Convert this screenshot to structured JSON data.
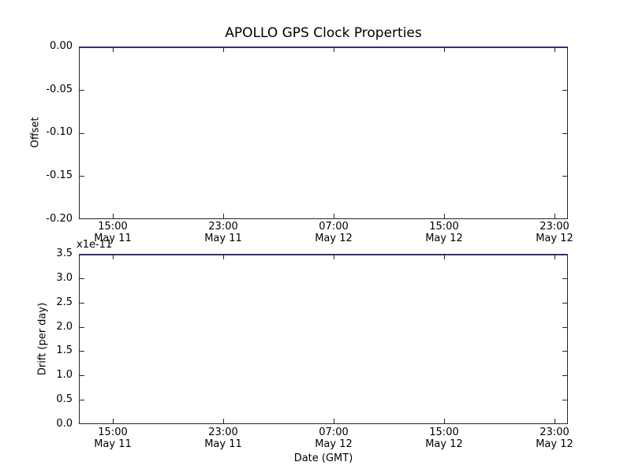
{
  "figure": {
    "title": "APOLLO GPS Clock Properties",
    "background": "#ffffff",
    "spine_color": "#262626",
    "data_line_color": "#32326e"
  },
  "top_plot": {
    "ylabel": "Offset",
    "yticks": [
      "0.00",
      "-0.05",
      "-0.10",
      "-0.15",
      "-0.20"
    ]
  },
  "bottom_plot": {
    "ylabel": "Drift (per day)",
    "xlabel": "Date (GMT)",
    "offset_text": "x1e-11",
    "yticks": [
      "3.5",
      "3.0",
      "2.5",
      "2.0",
      "1.5",
      "1.0",
      "0.5",
      "0.0"
    ]
  },
  "xticks": [
    {
      "time": "15:00",
      "date": "May 11"
    },
    {
      "time": "23:00",
      "date": "May 11"
    },
    {
      "time": "07:00",
      "date": "May 12"
    },
    {
      "time": "15:00",
      "date": "May 12"
    },
    {
      "time": "23:00",
      "date": "May 12"
    }
  ],
  "chart_data": [
    {
      "type": "line",
      "title": "APOLLO GPS Clock Properties",
      "xlabel": "",
      "ylabel": "Offset",
      "ylim": [
        -0.2,
        0.0
      ],
      "yticks": [
        0.0,
        -0.05,
        -0.1,
        -0.15,
        -0.2
      ],
      "x_tick_labels": [
        "15:00 May 11",
        "23:00 May 11",
        "07:00 May 12",
        "15:00 May 12",
        "23:00 May 12"
      ],
      "grid": false,
      "legend": null,
      "series": [
        {
          "name": "offset",
          "color": "#32326e",
          "values": [
            0.0,
            0.0,
            0.0,
            0.0,
            0.0
          ],
          "note": "flat line drawn along the top edge of the axes at y = 0.00"
        }
      ]
    },
    {
      "type": "line",
      "title": "",
      "xlabel": "Date (GMT)",
      "ylabel": "Drift (per day)",
      "y_offset_text": "x1e-11",
      "ylim": [
        0.0,
        3.5e-11
      ],
      "yticks": [
        0.0,
        0.5,
        1.0,
        1.5,
        2.0,
        2.5,
        3.0,
        3.5
      ],
      "ytick_scale": 1e-11,
      "x_tick_labels": [
        "15:00 May 11",
        "23:00 May 11",
        "07:00 May 12",
        "15:00 May 12",
        "23:00 May 12"
      ],
      "grid": false,
      "legend": null,
      "series": [
        {
          "name": "drift",
          "color": "#32326e",
          "values": [
            3.5e-11,
            3.5e-11,
            3.5e-11,
            3.5e-11,
            3.5e-11
          ],
          "note": "flat line drawn along the top edge of the axes at y = 3.5e-11"
        }
      ]
    }
  ]
}
